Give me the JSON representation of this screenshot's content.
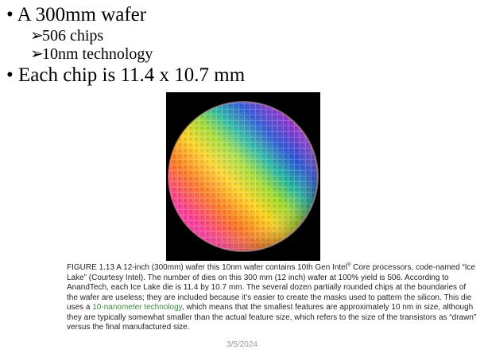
{
  "bullets": [
    {
      "marker": "•",
      "text": "A 300mm wafer",
      "sub": [
        {
          "marker": "➢",
          "text": "506 chips"
        },
        {
          "marker": "➢",
          "text": "10nm technology"
        }
      ]
    },
    {
      "marker": "•",
      "text": "Each chip is 11.4 x 10.7 mm"
    }
  ],
  "figure": {
    "image": "silicon-wafer-photo",
    "caption": {
      "part1": "FIGURE 1.13 A 12-inch (300mm) wafer this 10nm wafer contains 10th Gen Intel",
      "registered": "®",
      "part2": " Core processors, code-named “Ice Lake” (Courtesy Intel). The number of dies on this 300 mm (12 inch) wafer at 100% yield is 506. According to AnandTech, each Ice Lake die is 11.4 by 10.7 mm. The several dozen partially rounded chips at the boundaries of the wafer are useless; they are included because it’s easier to create the masks used to pattern the silicon. This die uses a ",
      "link": "10-nanometer technology",
      "part3": ", which means that the smallest features are approximately 10 nm in size, although they are typically somewhat smaller than the actual feature size, which refers to the size of the transistors as “drawn” versus the final manufactured size."
    }
  },
  "footer": {
    "date": "3/5/2024"
  },
  "colors": {
    "caption_link": "#3a8a3a",
    "footer": "#9a9a9a"
  }
}
